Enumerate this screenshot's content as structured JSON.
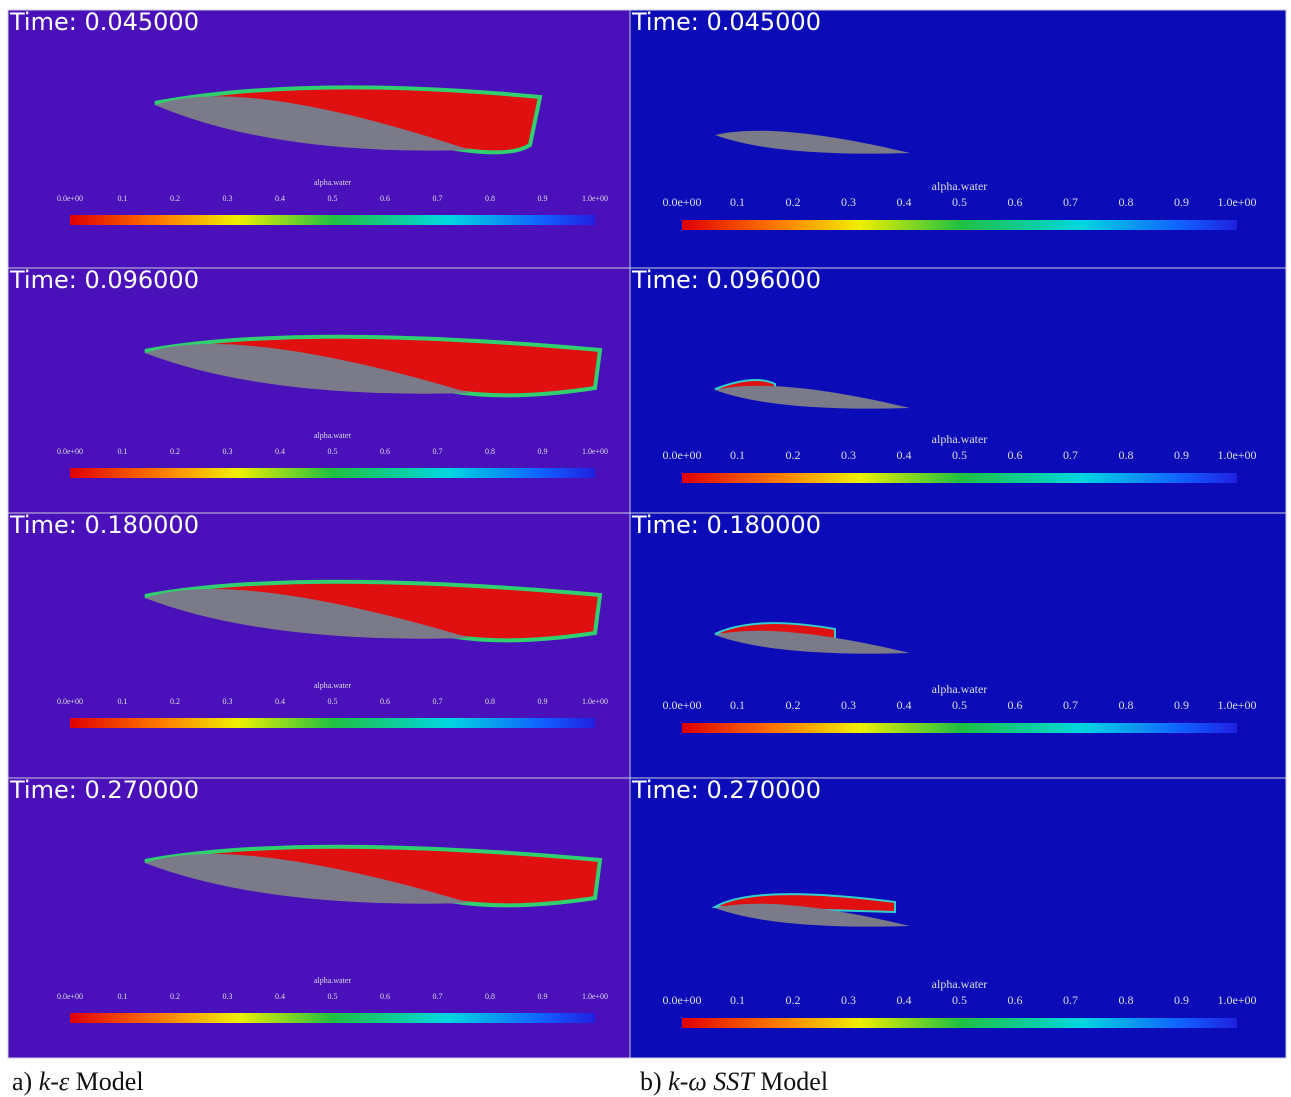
{
  "columns": [
    {
      "panels": [
        "Time: 0.045000",
        "Time: 0.096000",
        "Time: 0.180000",
        "Time: 0.270000"
      ],
      "caption": {
        "label": "a)",
        "model": "k-ε",
        "suffix": "Model"
      }
    },
    {
      "panels": [
        "Time: 0.045000",
        "Time: 0.096000",
        "Time: 0.180000",
        "Time: 0.270000"
      ],
      "caption": {
        "label": "b)",
        "model": "k-ω SST",
        "suffix": "Model"
      }
    }
  ],
  "colorbar": {
    "title": "alpha.water",
    "ticks": [
      "0.0e+00",
      "0.1",
      "0.2",
      "0.3",
      "0.4",
      "0.5",
      "0.6",
      "0.7",
      "0.8",
      "0.9",
      "1.0e+00"
    ]
  }
}
